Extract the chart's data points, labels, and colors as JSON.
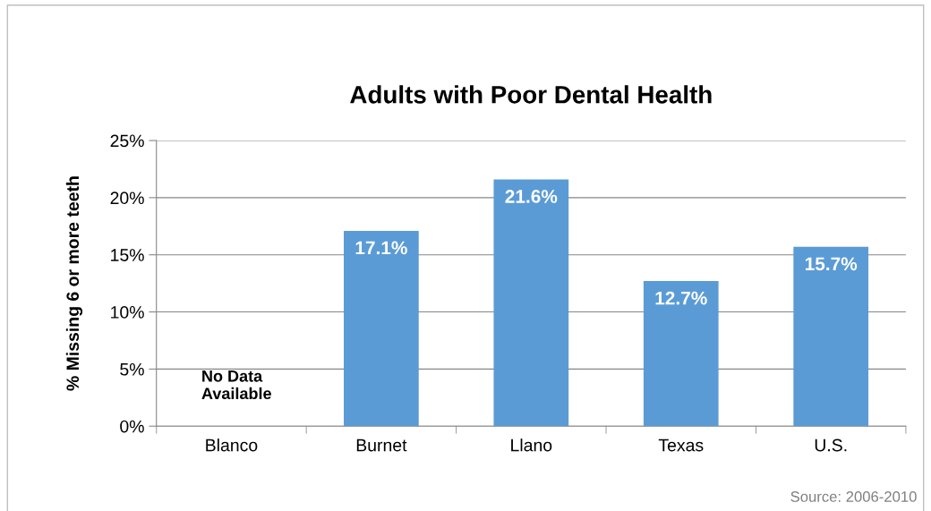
{
  "chart_data": {
    "type": "bar",
    "title": "Adults with Poor Dental Health",
    "ylabel": "% Missing 6 or more teeth",
    "categories": [
      "Blanco",
      "Burnet",
      "Llano",
      "Texas",
      "U.S."
    ],
    "values": [
      null,
      17.1,
      21.6,
      12.7,
      15.7
    ],
    "value_labels": [
      null,
      "17.1%",
      "21.6%",
      "12.7%",
      "15.7%"
    ],
    "color": "#5b9bd5",
    "ylim": [
      0,
      25
    ],
    "yticks": [
      {
        "value": 0,
        "label": "0%"
      },
      {
        "value": 5,
        "label": "5%"
      },
      {
        "value": 10,
        "label": "10%"
      },
      {
        "value": 15,
        "label": "15%"
      },
      {
        "value": 20,
        "label": "20%"
      },
      {
        "value": 25,
        "label": "25%"
      }
    ],
    "grid": "y",
    "annotations": [
      "No Data\nAvailable",
      "Source: 2006-2010"
    ]
  }
}
